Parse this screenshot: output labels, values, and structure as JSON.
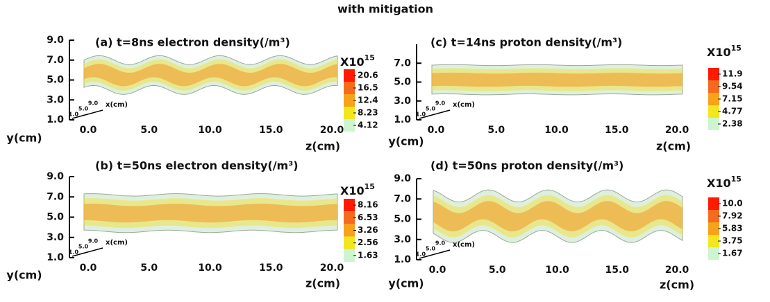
{
  "chart_data": [
    {
      "type": "density",
      "title": "(a) t=8ns electron density(/m³)",
      "xlabel": "z(cm)",
      "ylabel": "y(cm)",
      "xlim": [
        0,
        20
      ],
      "xticks": [
        {
          "value": 0,
          "label": "0.0"
        },
        {
          "value": 5,
          "label": "5.0"
        },
        {
          "value": 10,
          "label": "10.0"
        },
        {
          "value": 15,
          "label": "15.0"
        },
        {
          "value": 20,
          "label": "20.0"
        }
      ],
      "ylim": [
        1,
        9
      ],
      "yticks": [
        {
          "value": 1,
          "label": "1.0"
        },
        {
          "value": 3,
          "label": "3.0"
        },
        {
          "value": 5,
          "label": "5.0"
        },
        {
          "value": 7,
          "label": "7.0"
        },
        {
          "value": 9,
          "label": "9.0"
        }
      ],
      "colorbar": {
        "multiplier": "X10",
        "exponent": "15",
        "ticks": [
          20.6,
          16.5,
          12.4,
          8.23,
          4.12
        ],
        "colors": [
          "#ff1a00",
          "#f46b1e",
          "#f7a21b",
          "#f2e61f",
          "#cdf5d0"
        ]
      }
    },
    {
      "type": "density",
      "title": "(b) t=50ns electron density(/m³)",
      "xlabel": "z(cm)",
      "ylabel": "y(cm)",
      "xlim": [
        0,
        20
      ],
      "xticks": [
        {
          "value": 0,
          "label": "0.0"
        },
        {
          "value": 5,
          "label": "5.0"
        },
        {
          "value": 10,
          "label": "10.0"
        },
        {
          "value": 15,
          "label": "15.0"
        },
        {
          "value": 20,
          "label": "20.0"
        }
      ],
      "ylim": [
        1,
        9
      ],
      "yticks": [
        {
          "value": 1,
          "label": "1.0"
        },
        {
          "value": 3,
          "label": "3.0"
        },
        {
          "value": 5,
          "label": "5.0"
        },
        {
          "value": 7,
          "label": "7.0"
        },
        {
          "value": 9,
          "label": "9.0"
        }
      ],
      "colorbar": {
        "multiplier": "X10",
        "exponent": "15",
        "ticks": [
          8.16,
          6.53,
          3.26,
          2.56,
          1.63
        ],
        "colors": [
          "#ff1a00",
          "#f46b1e",
          "#f7a21b",
          "#f2e61f",
          "#cdf5d0"
        ]
      }
    },
    {
      "type": "density",
      "title": "(c) t=14ns proton density(/m³)",
      "xlabel": "z(cm)",
      "ylabel": "y(cm)",
      "xlim": [
        0,
        20
      ],
      "xticks": [
        {
          "value": 0,
          "label": "0.0"
        },
        {
          "value": 5,
          "label": "5.0"
        },
        {
          "value": 10,
          "label": "10.0"
        },
        {
          "value": 15,
          "label": "15.0"
        },
        {
          "value": 20,
          "label": "20.0"
        }
      ],
      "ylim": [
        1,
        9
      ],
      "yticks": [
        {
          "value": 1,
          "label": "1.0"
        },
        {
          "value": 3,
          "label": "3.0"
        },
        {
          "value": 5,
          "label": "5.0"
        },
        {
          "value": 7,
          "label": "7.0"
        }
      ],
      "colorbar": {
        "multiplier": "X10",
        "exponent": "15",
        "ticks": [
          11.9,
          9.54,
          7.15,
          4.77,
          2.38
        ],
        "colors": [
          "#ff1a00",
          "#f46b1e",
          "#f7a21b",
          "#f2e61f",
          "#cdf5d0"
        ]
      }
    },
    {
      "type": "density",
      "title": "(d) t=50ns proton density(/m³)",
      "xlabel": "z(cm)",
      "ylabel": "y(cm)",
      "xlim": [
        0,
        20
      ],
      "xticks": [
        {
          "value": 0,
          "label": "0.0"
        },
        {
          "value": 5,
          "label": "5.0"
        },
        {
          "value": 10,
          "label": "10.0"
        },
        {
          "value": 15,
          "label": "15.0"
        },
        {
          "value": 20,
          "label": "20.0"
        }
      ],
      "ylim": [
        1,
        9
      ],
      "yticks": [
        {
          "value": 1,
          "label": "1.0"
        },
        {
          "value": 3,
          "label": "3.0"
        },
        {
          "value": 5,
          "label": "5.0"
        },
        {
          "value": 7,
          "label": "7.0"
        },
        {
          "value": 9,
          "label": "9.0"
        }
      ],
      "colorbar": {
        "multiplier": "X10",
        "exponent": "15",
        "ticks": [
          {
            "value": 10,
            "label": "10.0"
          },
          7.92,
          5.83,
          3.75,
          1.67
        ],
        "colors": [
          "#ff1a00",
          "#f46b1e",
          "#f7a21b",
          "#f2e61f",
          "#cdf5d0"
        ]
      }
    }
  ],
  "title": "with mitigation",
  "inset": {
    "ticks": [
      {
        "value": 1,
        "label": "1.0"
      },
      {
        "value": 5,
        "label": "5.0"
      },
      {
        "value": 9,
        "label": "9.0"
      }
    ],
    "label": "x(cm)"
  }
}
